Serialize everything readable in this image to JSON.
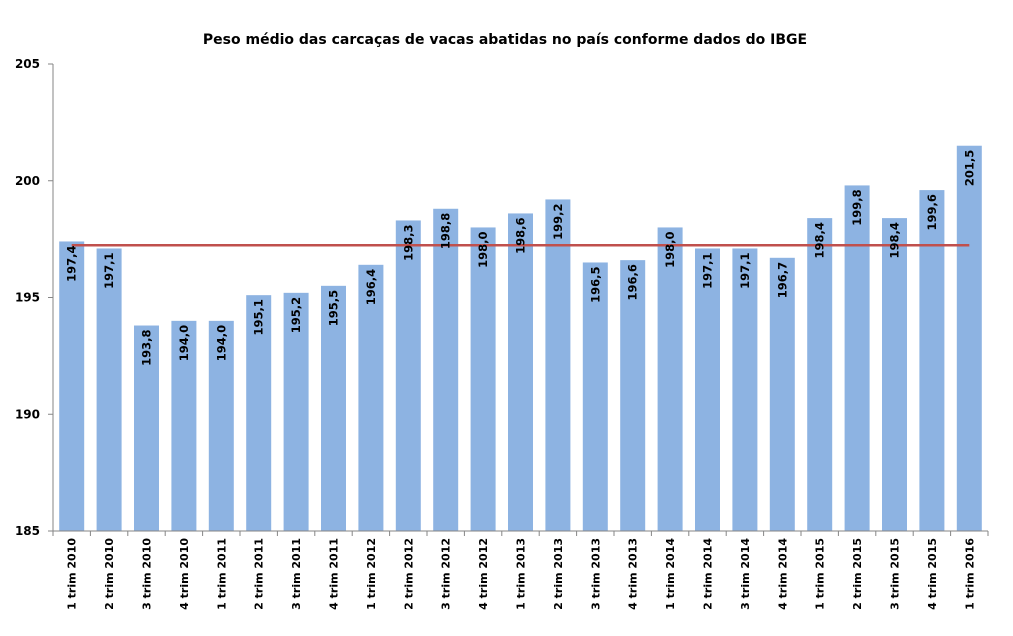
{
  "chart_data": {
    "type": "bar",
    "title": "Peso médio das carcaças de  vacas abatidas no país conforme dados do IBGE",
    "xlabel": "",
    "ylabel": "",
    "ylim": [
      185,
      205
    ],
    "yticks": [
      "185",
      "190",
      "195",
      "200",
      "205"
    ],
    "categories": [
      "1 trim 2010",
      "2 trim 2010",
      "3 trim 2010",
      "4 trim 2010",
      "1 trim 2011",
      "2 trim 2011",
      "3 trim 2011",
      "4 trim 2011",
      "1 trim 2012",
      "2 trim 2012",
      "3 trim 2012",
      "4 trim 2012",
      "1 trim 2013",
      "2 trim 2013",
      "3 trim 2013",
      "4 trim 2013",
      "1 trim 2014",
      "2 trim 2014",
      "3 trim 2014",
      "4 trim 2014",
      "1 trim 2015",
      "2 trim 2015",
      "3 trim 2015",
      "4 trim 2015",
      "1 trim 2016"
    ],
    "values": [
      197.4,
      197.1,
      193.8,
      194.0,
      194.0,
      195.1,
      195.2,
      195.5,
      196.4,
      198.3,
      198.8,
      198.0,
      198.6,
      199.2,
      196.5,
      196.6,
      198.0,
      197.1,
      197.1,
      196.7,
      198.4,
      199.8,
      198.4,
      199.6,
      201.5
    ],
    "data_labels": [
      "197,4",
      "197,1",
      "193,8",
      "194,0",
      "194,0",
      "195,1",
      "195,2",
      "195,5",
      "196,4",
      "198,3",
      "198,8",
      "198,0",
      "198,6",
      "199,2",
      "196,5",
      "196,6",
      "198,0",
      "197,1",
      "197,1",
      "196,7",
      "198,4",
      "199,8",
      "198,4",
      "199,6",
      "201,5"
    ],
    "average_line": 197.24,
    "grid": false,
    "legend": "none",
    "colors": {
      "bar": "#8db3e2",
      "average_line": "#c0504d",
      "axis": "#868686"
    }
  }
}
